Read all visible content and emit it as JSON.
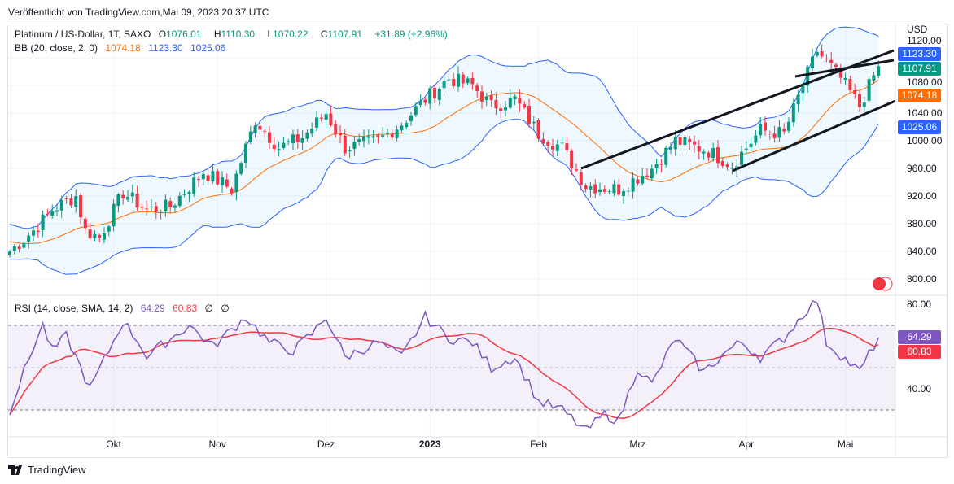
{
  "header": {
    "published": "Veröffentlicht von TradingView.com,Mai 09, 2023 20:37 UTC"
  },
  "legend": {
    "symbol": "Platinum / US-Dollar, 1T, SAXO",
    "o_label": "O",
    "o": "1076.01",
    "h_label": "H",
    "h": "1110.30",
    "l_label": "L",
    "l": "1070.22",
    "c_label": "C",
    "c": "1107.91",
    "change": "+31.89 (+2.96%)",
    "bb_label": "BB (20, close, 2, 0)",
    "bb_basis": "1074.18",
    "bb_upper": "1123.30",
    "bb_lower": "1025.06",
    "rsi_label": "RSI (14, close, SMA, 14, 2)",
    "rsi": "64.29",
    "rsi_sma": "60.83",
    "na1": "∅",
    "na2": "∅"
  },
  "currency": "USD",
  "tags": {
    "upper": "1123.30",
    "close": "1107.91",
    "basis": "1074.18",
    "lower": "1025.06",
    "rsi": "64.29",
    "rsi_sma": "60.83"
  },
  "colors": {
    "up": "#089981",
    "down": "#f23645",
    "basis": "#ff6d00",
    "band": "#2962ff",
    "rsi": "#7e57c2",
    "rsi_sma": "#f23645"
  },
  "footer": {
    "brand": "TradingView"
  },
  "chart_data": {
    "type": "candlestick",
    "title": "Platinum / US-Dollar, 1T, SAXO",
    "price_ticks": [
      "1120.00",
      "1080.00",
      "1040.00",
      "1000.00",
      "960.00",
      "920.00",
      "880.00",
      "840.00",
      "800.00"
    ],
    "price_tick_values": [
      1120,
      1080,
      1040,
      1000,
      960,
      920,
      880,
      840,
      800
    ],
    "rsi_ticks": [
      "80.00",
      "40.00"
    ],
    "rsi_tick_values": [
      80,
      40
    ],
    "rsi_bands": [
      70,
      30
    ],
    "x_ticks": [
      "Okt",
      "Nov",
      "Dez",
      "2023",
      "Feb",
      "Mrz",
      "Apr",
      "Mai"
    ],
    "x_tick_bars": [
      22,
      44,
      67,
      89,
      112,
      133,
      156,
      177
    ],
    "bars": 185,
    "close_keypoints": [
      [
        0,
        840
      ],
      [
        5,
        870
      ],
      [
        9,
        900
      ],
      [
        14,
        920
      ],
      [
        16,
        870
      ],
      [
        19,
        860
      ],
      [
        24,
        925
      ],
      [
        29,
        900
      ],
      [
        34,
        905
      ],
      [
        41,
        955
      ],
      [
        47,
        930
      ],
      [
        52,
        1030
      ],
      [
        57,
        990
      ],
      [
        62,
        1005
      ],
      [
        67,
        1040
      ],
      [
        71,
        990
      ],
      [
        78,
        1000
      ],
      [
        83,
        1025
      ],
      [
        88,
        1060
      ],
      [
        93,
        1090
      ],
      [
        98,
        1080
      ],
      [
        102,
        1050
      ],
      [
        107,
        1060
      ],
      [
        112,
        1010
      ],
      [
        117,
        990
      ],
      [
        122,
        935
      ],
      [
        129,
        930
      ],
      [
        136,
        960
      ],
      [
        141,
        1000
      ],
      [
        148,
        985
      ],
      [
        153,
        965
      ],
      [
        159,
        1015
      ],
      [
        164,
        1010
      ],
      [
        168,
        1080
      ],
      [
        171,
        1130
      ],
      [
        176,
        1090
      ],
      [
        180,
        1050
      ],
      [
        184,
        1107.91
      ]
    ],
    "rsi_keypoints": [
      [
        0,
        30
      ],
      [
        5,
        60
      ],
      [
        7,
        70
      ],
      [
        9,
        58
      ],
      [
        12,
        65
      ],
      [
        16,
        45
      ],
      [
        17,
        40
      ],
      [
        21,
        58
      ],
      [
        24,
        72
      ],
      [
        28,
        60
      ],
      [
        29,
        55
      ],
      [
        33,
        62
      ],
      [
        38,
        70
      ],
      [
        43,
        60
      ],
      [
        50,
        74
      ],
      [
        55,
        62
      ],
      [
        60,
        58
      ],
      [
        64,
        66
      ],
      [
        67,
        74
      ],
      [
        71,
        55
      ],
      [
        78,
        62
      ],
      [
        83,
        55
      ],
      [
        88,
        74
      ],
      [
        93,
        64
      ],
      [
        98,
        62
      ],
      [
        102,
        50
      ],
      [
        107,
        55
      ],
      [
        112,
        34
      ],
      [
        117,
        30
      ],
      [
        122,
        20
      ],
      [
        126,
        28
      ],
      [
        129,
        25
      ],
      [
        133,
        50
      ],
      [
        136,
        42
      ],
      [
        141,
        64
      ],
      [
        147,
        48
      ],
      [
        152,
        58
      ],
      [
        155,
        62
      ],
      [
        159,
        55
      ],
      [
        164,
        64
      ],
      [
        169,
        78
      ],
      [
        171,
        82
      ],
      [
        173,
        62
      ],
      [
        178,
        52
      ],
      [
        180,
        48
      ],
      [
        184,
        64.29
      ]
    ]
  }
}
